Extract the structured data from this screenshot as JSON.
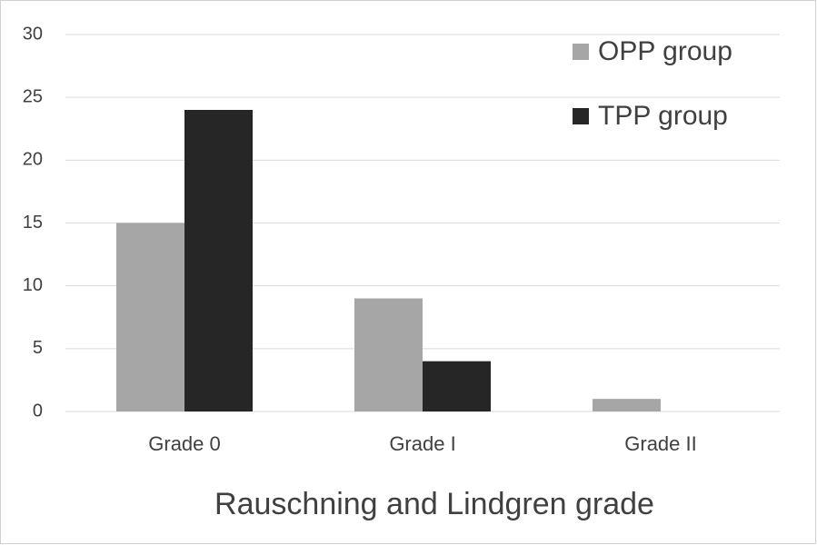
{
  "chart_data": {
    "type": "bar",
    "x_label": "Rauschning and Lindgren grade",
    "categories": [
      "Grade 0",
      "Grade I",
      "Grade II"
    ],
    "series": [
      {
        "name": "OPP group",
        "color": "#a6a6a6",
        "values": [
          15,
          9,
          1
        ]
      },
      {
        "name": "TPP group",
        "color": "#262626",
        "values": [
          24,
          4,
          0
        ]
      }
    ],
    "ylim": [
      0,
      30
    ],
    "yticks": [
      0,
      5,
      10,
      15,
      20,
      25,
      30
    ],
    "grid": true,
    "legend": "top-right"
  }
}
